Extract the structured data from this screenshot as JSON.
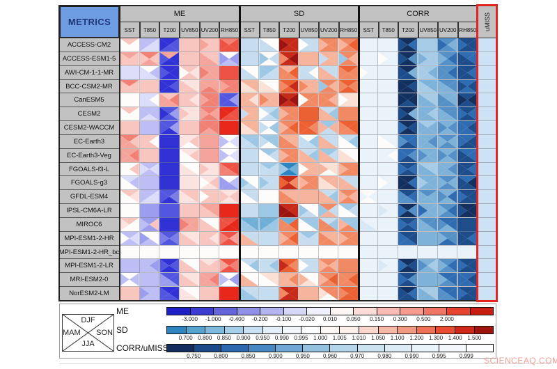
{
  "header": {
    "metrics_label": "METRICS",
    "groups": [
      {
        "label": "ME",
        "cols": [
          "SST",
          "T850",
          "T200",
          "UV850",
          "UV200",
          "RH850"
        ]
      },
      {
        "label": "SD",
        "cols": [
          "SST",
          "T850",
          "T200",
          "UV850",
          "UV200",
          "RH850"
        ]
      },
      {
        "label": "CORR",
        "cols": [
          "SST",
          "T850",
          "T200",
          "UV850",
          "UV200",
          "RH850"
        ]
      }
    ],
    "umiss_label": "uMISS"
  },
  "colors": {
    "header_bg": "#c2c2c2",
    "metrics_bg": "#6d9ce0",
    "metrics_text": "#20357a",
    "umiss_border": "#e42420",
    "umiss_cell": "#cde2f4"
  },
  "palette": {
    "0": "#fdfcfb",
    "1": "#3032d6",
    "2": "#5356de",
    "3": "#7b7ee6",
    "4": "#9b9eee",
    "5": "#bcbef4",
    "6": "#dcddf9",
    "a": "#fbe3e0",
    "b": "#f8c5bf",
    "c": "#f5a49b",
    "d": "#f18075",
    "e": "#ee5244",
    "f": "#e8281a",
    "g": "#2f85c0",
    "h": "#6fb0d8",
    "i": "#9cc8e5",
    "j": "#c6ddf0",
    "k": "#e4eef8",
    "l": "#fbe0d6",
    "m": "#f7b49c",
    "n": "#f18a64",
    "o": "#ec6134",
    "p": "#c62a18",
    "q": "#9c1410",
    "r": "#14305e",
    "s": "#1e4d8c",
    "t": "#2f6cb2",
    "u": "#5590c6",
    "v": "#7fb2d8",
    "w": "#a6cbe6",
    "x": "#c2daee",
    "y": "#d8e8f4",
    "z": "#eaf3fa",
    "A": "#cde2f4"
  },
  "chart_data": {
    "type": "heatmap",
    "title": "",
    "row_header": "METRICS",
    "metric_groups": [
      "ME",
      "SD",
      "CORR",
      "uMISS"
    ],
    "columns": [
      "ME_SST",
      "ME_T850",
      "ME_T200",
      "ME_UV850",
      "ME_UV200",
      "ME_RH850",
      "SD_SST",
      "SD_T850",
      "SD_T200",
      "SD_UV850",
      "SD_UV200",
      "SD_RH850",
      "CORR_SST",
      "CORR_T850",
      "CORR_T200",
      "CORR_UV850",
      "CORR_UV200",
      "CORR_RH850",
      "uMISS"
    ],
    "seasons": {
      "top": "DJF",
      "left": "MAM",
      "right": "SON",
      "bottom": "JJA"
    },
    "cell_encoding": "4 chars = palette keys for season triangles in order [top DJF, left MAM, right SON, bottom JJA]",
    "rows": [
      {
        "model": "ACCESS-CM2",
        "cells": [
          "b000",
          "5566",
          "1122",
          "bbbb",
          "bcbb",
          "deee",
          "jjjj",
          "0j0j",
          "pqpp",
          "j0jj",
          "nmnn",
          "nmon",
          "zzzz",
          "zzzz",
          "rstr",
          "wwww",
          "utvu",
          "stss",
          "AAAA"
        ]
      },
      {
        "model": "ACCESS-ESM1-5",
        "cells": [
          "cbbb",
          "dbbc",
          "c211",
          "bbbb",
          "bcbc",
          "0445",
          "jjjj",
          "0ij0",
          "pnqp",
          "mmmm",
          "mjmm",
          "nimn",
          "zzzz",
          "z0zz",
          "rsur",
          "wvww",
          "uvtu",
          "tsts",
          "AAAA"
        ]
      },
      {
        "model": "AWI-CM-1-1-MR",
        "cells": [
          "6666",
          "0656",
          "1211",
          "b0ab",
          "cdcc",
          "eeee",
          "0j0j",
          "iijj",
          "mnon",
          "jj0j",
          "jmjm",
          "onnn",
          "z0zz",
          "zzzz",
          "rsvs",
          "wwvw",
          "uutu",
          "ssts",
          "AAAA"
        ]
      },
      {
        "model": "BCC-CSM2-MR",
        "cells": [
          "dbbb",
          "bbbb",
          "1121",
          "abab",
          "cccd",
          "dcdd",
          "mlml",
          "0l0l",
          "onpo",
          "mnmm",
          "nimn",
          "onno",
          "zzzz",
          "zzzz",
          "rrsr",
          "vwvw",
          "uvuv",
          "tsst",
          "AAAA"
        ]
      },
      {
        "model": "CanESM5",
        "cells": [
          "0000",
          "6606",
          "bcdc",
          "bbab",
          "dcdd",
          "2242",
          "mmlm",
          "mnmm",
          "pqqp",
          "n0nn",
          "nnmn",
          "l0ll",
          "zzzz",
          "zzzz",
          "rrrs",
          "wvwv",
          "vuvu",
          "srrs",
          "AAAA"
        ]
      },
      {
        "model": "CESM2",
        "cells": [
          "b000",
          "5556",
          "2142",
          "abaa",
          "dccd",
          "ffee",
          "mjmm",
          "j0ij",
          "nmnn",
          "oooo",
          "jmim",
          "nnnn",
          "zzzz",
          "zzzz",
          "rsvr",
          "vvwv",
          "uvuv",
          "stts",
          "AAAA"
        ]
      },
      {
        "model": "CESM2-WACCM",
        "cells": [
          "bbbb",
          "5555",
          "2241",
          "bbbb",
          "dddc",
          "ffff",
          "mlml",
          "0ji0",
          "nmon",
          "oono",
          "immj",
          "onon",
          "zzzz",
          "zzzz",
          "rtsr",
          "wvvv",
          "vuuv",
          "ttst",
          "AAAA"
        ]
      },
      {
        "model": "EC-Earth3",
        "cells": [
          "dcbc",
          "bb0b",
          "1111",
          "aab0",
          "cccc",
          "0560",
          "ijij",
          "iji0",
          "mnmn",
          "0jij",
          "jmjm",
          "j0i0",
          "zzzz",
          "z0z0",
          "tuts",
          "vvuv",
          "uvvu",
          "ttss",
          "AAAA"
        ]
      },
      {
        "model": "EC-Earth3-Veg",
        "cells": [
          "ccdc",
          "bbbb",
          "1111",
          "a0b0",
          "cccc",
          "0560",
          "jjjj",
          "i0j0",
          "nmnn",
          "jmim",
          "imjm",
          "0l0l",
          "zzzz",
          "zz0z",
          "ttus",
          "vuvv",
          "vuuv",
          "tsts",
          "AAAA"
        ]
      },
      {
        "model": "FGOALS-f3-L",
        "cells": [
          "00b0",
          "5665",
          "1111",
          "0a0a",
          "abaa",
          "eded",
          "jjjj",
          "ijjj",
          "gihg",
          "m0mm",
          "lml0",
          "nmnn",
          "zzzz",
          "zzzz",
          "stts",
          "wvwv",
          "vvuv",
          "ssts",
          "AAAA"
        ]
      },
      {
        "model": "FGOALS-g3",
        "cells": [
          "6050",
          "5555",
          "1111",
          "aaaa",
          "a0ba",
          "0454",
          "0i0j",
          "jijj",
          "ponp",
          "nmnn",
          "mlml",
          "jmjm",
          "zzzz",
          "z0zz",
          "rrtr",
          "vwvv",
          "uvvu",
          "tsrs",
          "AAAA"
        ]
      },
      {
        "model": "GFDL-ESM4",
        "cells": [
          "b0a0",
          "5566",
          "2231",
          "baba",
          "b0bb",
          "abba",
          "j0j0",
          "0000",
          "mnmn",
          "mmmm",
          "jmim",
          "nmmn",
          "0zz0",
          "zzzz",
          "sutu",
          "uvvv",
          "vutv",
          "stss",
          "AAAA"
        ]
      },
      {
        "model": "IPSL-CM6A-LR",
        "cells": [
          "0000",
          "4444",
          "2222",
          "bbbb",
          "cbcb",
          "ffff",
          "jjjj",
          "iiii",
          "pqpq",
          "0i0j",
          "nijm",
          "i0j0",
          "zzzz",
          "zyzz",
          "rtur",
          "vtvv",
          "uvtu",
          "rsrr",
          "AAAA"
        ]
      },
      {
        "model": "MIROC6",
        "cells": [
          "ba00",
          "45b4",
          "1111",
          "cdcc",
          "0b0b",
          "eeff",
          "hihi",
          "hhii",
          "hnon",
          "i0i0",
          "jnin",
          "imin",
          "zyzy",
          "zzzz",
          "stts",
          "uvuv",
          "tutv",
          "ssss",
          "AAAA"
        ]
      },
      {
        "model": "MPI-ESM1-2-HR",
        "cells": [
          "5065",
          "0405",
          "2332",
          "abab",
          "bbab",
          "edce",
          "jmjm",
          "jjjj",
          "nmon",
          "ijjj",
          "mnmn",
          "nmnn",
          "zzzz",
          "zzzz",
          "stst",
          "vvvv",
          "uvut",
          "ssts",
          "AAAA"
        ]
      },
      {
        "model": "MPI-ESM1-2-HR_bc",
        "cells": [
          "0000",
          "0000",
          "0000",
          "0000",
          "0000",
          "0000",
          "0000",
          "0000",
          "0000",
          "0000",
          "0000",
          "0000",
          "zzzz",
          "zzzz",
          "zzzz",
          "zzzz",
          "zzzz",
          "zzzz",
          "AAAA"
        ]
      },
      {
        "model": "MPI-ESM1-2-LR",
        "cells": [
          "5555",
          "5545",
          "1221",
          "0b0b",
          "abbb",
          "ecde",
          "j0i0",
          "jjij",
          "opno",
          "j0jj",
          "nmmn",
          "nnnn",
          "zzzz",
          "zyzz",
          "rtsr",
          "vuwv",
          "uvtu",
          "stss",
          "AAAA"
        ]
      },
      {
        "model": "MRI-ESM2-0",
        "cells": [
          "0550",
          "5555",
          "2424",
          "abab",
          "ccdc",
          "0540",
          "0m0m",
          "l0l0",
          "mmnm",
          "0m0l",
          "nmon",
          "nnon",
          "zzzz",
          "zzzz",
          "stus",
          "vvvv",
          "tvtu",
          "ttst",
          "AAAA"
        ]
      },
      {
        "model": "NorESM2-LM",
        "cells": [
          "bbbb",
          "5455",
          "1212",
          "0a0a",
          "bbbb",
          "ffff",
          "jiji",
          "jjjj",
          "pnpp",
          "mmmm",
          "nln0",
          "onoo",
          "zzzz",
          "zzzz",
          "rsts",
          "wvwv",
          "tutu",
          "stss",
          "AAAA"
        ]
      }
    ]
  },
  "legend": {
    "seasons": {
      "top": "DJF",
      "left": "MAM",
      "right": "SON",
      "bottom": "JJA"
    },
    "bars": [
      {
        "label": "ME",
        "segments": [
          "#2020c8",
          "#3c3cd2",
          "#6666dc",
          "#9090e8",
          "#b4b4f0",
          "#d6d6f7",
          "#f0f0fc",
          "#fdf6f5",
          "#fbdcd7",
          "#f8bcb4",
          "#f49a8e",
          "#f07564",
          "#e74432",
          "#c81e12"
        ],
        "ticks": [
          "-3.000",
          "-1.000",
          "-0.400",
          "-0.200",
          "-0.100",
          "-0.020",
          "0.010",
          "0.050",
          "0.150",
          "0.300",
          "0.500",
          "2.000"
        ]
      },
      {
        "label": "SD",
        "segments": [
          "#2f85c0",
          "#57a3d0",
          "#7fbadd",
          "#a5cee9",
          "#c8e0f2",
          "#e2eef8",
          "#f1f6fb",
          "#fcfdfe",
          "#fdf8f6",
          "#fceee9",
          "#f9d7cd",
          "#f6b9a8",
          "#f29781",
          "#ee7156",
          "#e84c31",
          "#d02818",
          "#a01410"
        ],
        "ticks": [
          "0.700",
          "0.800",
          "0.850",
          "0.900",
          "0.950",
          "0.990",
          "0.995",
          "1.000",
          "1.005",
          "1.010",
          "1.050",
          "1.100",
          "1.200",
          "1.300",
          "1.400",
          "1.500"
        ]
      },
      {
        "label": "CORR/uMISS",
        "segments": [
          "#132e5c",
          "#1c4a88",
          "#2b68ae",
          "#4788c2",
          "#6ea8d2",
          "#95c1e0",
          "#b4d4ea",
          "#cbe2f1",
          "#dcecf6",
          "#e9f3fa",
          "#f3f8fc",
          "#fbfdfe"
        ],
        "ticks": [
          "0.750",
          "0.800",
          "0.850",
          "0.900",
          "0.950",
          "0.960",
          "0.970",
          "0.980",
          "0.990",
          "0.995",
          "0.999"
        ]
      }
    ]
  },
  "watermark": "SCIENCEAQ.COM"
}
